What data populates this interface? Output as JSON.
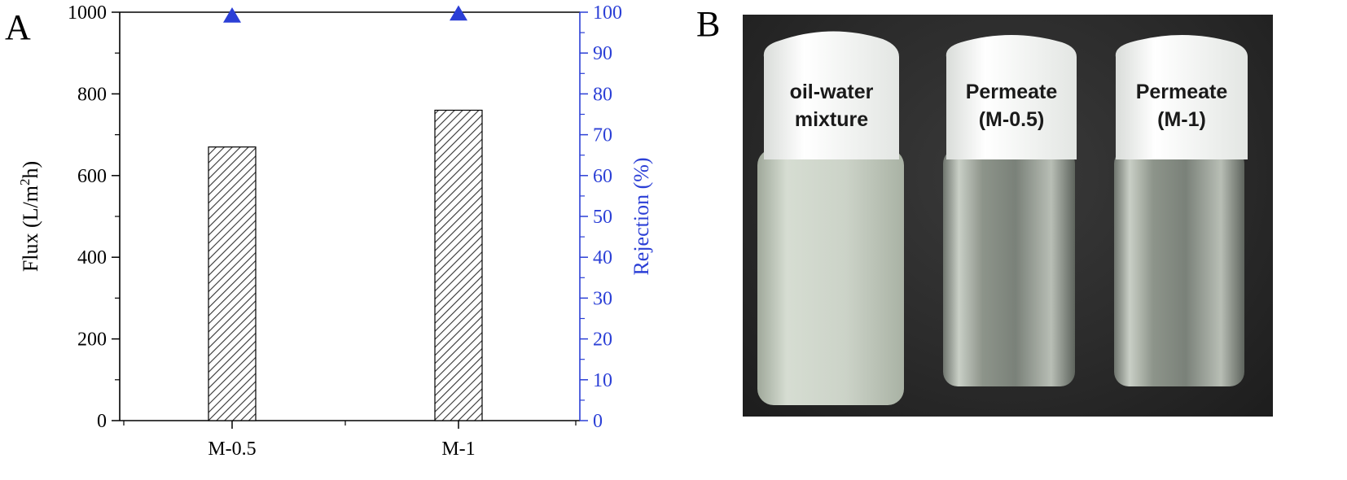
{
  "panel_a_letter": "A",
  "panel_b_letter": "B",
  "chart_data": {
    "type": "bar",
    "categories": [
      "M-0.5",
      "M-1"
    ],
    "series": [
      {
        "values": [
          670,
          760
        ],
        "axis": "left",
        "style": "hatched-bar"
      },
      {
        "values": [
          99,
          99.5
        ],
        "axis": "right",
        "style": "triangle-marker",
        "color": "#2b3fd6"
      }
    ],
    "ylabel": "Flux (L/m²h)",
    "ylabel_parts": {
      "before": "Flux (L/m",
      "sup": "2",
      "after": "h)"
    },
    "ylabel_right": "Rejection (%)",
    "ylim": [
      0,
      1000
    ],
    "ylim_right": [
      0,
      100
    ],
    "yticks": [
      "0",
      "200",
      "400",
      "600",
      "800",
      "1000"
    ],
    "yticks_right": [
      "0",
      "10",
      "20",
      "30",
      "40",
      "50",
      "60",
      "70",
      "80",
      "90",
      "100"
    ],
    "right_axis_color": "#2b3fd6",
    "grid": false
  },
  "photo": {
    "labels": [
      {
        "line1": "oil-water",
        "line2": "mixture"
      },
      {
        "line1": "Permeate",
        "line2": "(M-0.5)"
      },
      {
        "line1": "Permeate",
        "line2": "(M-1)"
      }
    ]
  }
}
